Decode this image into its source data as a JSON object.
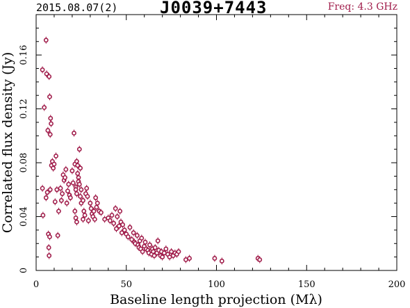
{
  "header": {
    "date": "2015.08.07(2)",
    "source": "J0039+7443",
    "freq": "Freq: 4.3 GHz"
  },
  "colors": {
    "marker": "#a01c4a",
    "axis": "#000000"
  },
  "chart_data": {
    "type": "scatter",
    "title": "J0039+7443",
    "xlabel": "Baseline length projection (Mλ)",
    "ylabel": "Correlated flux density (Jy)",
    "xlim": [
      0,
      200
    ],
    "ylim": [
      0,
      0.19
    ],
    "xticks": [
      "0",
      "50",
      "100",
      "150",
      "200"
    ],
    "yticks": [
      "0",
      "0.04",
      "0.08",
      "0.12",
      "0.16"
    ],
    "grid": false,
    "points": [
      [
        3.5,
        0.149
      ],
      [
        4.5,
        0.121
      ],
      [
        5.5,
        0.171
      ],
      [
        5.8,
        0.146
      ],
      [
        6.5,
        0.104
      ],
      [
        7.2,
        0.144
      ],
      [
        7.5,
        0.129
      ],
      [
        7.8,
        0.101
      ],
      [
        8,
        0.113
      ],
      [
        8.3,
        0.109
      ],
      [
        3.5,
        0.061
      ],
      [
        3.8,
        0.041
      ],
      [
        5.5,
        0.054
      ],
      [
        6.2,
        0.058
      ],
      [
        6.8,
        0.027
      ],
      [
        7,
        0.017
      ],
      [
        7.2,
        0.011
      ],
      [
        7.5,
        0.025
      ],
      [
        7.8,
        0.06
      ],
      [
        8.5,
        0.078
      ],
      [
        9,
        0.081
      ],
      [
        9.5,
        0.076
      ],
      [
        10,
        0.079
      ],
      [
        10.5,
        0.051
      ],
      [
        11,
        0.085
      ],
      [
        11.5,
        0.06
      ],
      [
        12,
        0.026
      ],
      [
        12.5,
        0.044
      ],
      [
        13.5,
        0.061
      ],
      [
        14,
        0.052
      ],
      [
        14.5,
        0.057
      ],
      [
        15,
        0.071
      ],
      [
        15.5,
        0.067
      ],
      [
        16,
        0.069
      ],
      [
        16.5,
        0.075
      ],
      [
        17,
        0.05
      ],
      [
        17.5,
        0.059
      ],
      [
        18,
        0.064
      ],
      [
        18.5,
        0.056
      ],
      [
        19,
        0.054
      ],
      [
        20,
        0.074
      ],
      [
        20.5,
        0.065
      ],
      [
        21,
        0.102
      ],
      [
        21.5,
        0.079
      ],
      [
        22,
        0.062
      ],
      [
        22.5,
        0.081
      ],
      [
        23,
        0.078
      ],
      [
        23.5,
        0.069
      ],
      [
        24,
        0.09
      ],
      [
        24.5,
        0.076
      ],
      [
        22,
        0.06
      ],
      [
        22.5,
        0.057
      ],
      [
        23,
        0.072
      ],
      [
        23.5,
        0.066
      ],
      [
        24,
        0.064
      ],
      [
        24.5,
        0.055
      ],
      [
        25,
        0.05
      ],
      [
        21.5,
        0.044
      ],
      [
        22,
        0.039
      ],
      [
        22.5,
        0.036
      ],
      [
        25,
        0.06
      ],
      [
        26,
        0.052
      ],
      [
        26.5,
        0.044
      ],
      [
        27,
        0.041
      ],
      [
        27.5,
        0.057
      ],
      [
        28,
        0.061
      ],
      [
        28.5,
        0.055
      ],
      [
        29,
        0.037
      ],
      [
        30,
        0.05
      ],
      [
        30.5,
        0.046
      ],
      [
        31,
        0.042
      ],
      [
        31.5,
        0.04
      ],
      [
        32,
        0.044
      ],
      [
        32.5,
        0.038
      ],
      [
        33,
        0.054
      ],
      [
        33.5,
        0.047
      ],
      [
        34,
        0.05
      ],
      [
        35,
        0.044
      ],
      [
        36,
        0.043
      ],
      [
        38,
        0.038
      ],
      [
        40,
        0.039
      ],
      [
        41,
        0.037
      ],
      [
        42,
        0.041
      ],
      [
        43,
        0.035
      ],
      [
        44,
        0.046
      ],
      [
        44.5,
        0.031
      ],
      [
        45,
        0.04
      ],
      [
        46,
        0.033
      ],
      [
        46.5,
        0.044
      ],
      [
        47,
        0.036
      ],
      [
        47.5,
        0.028
      ],
      [
        48,
        0.034
      ],
      [
        49,
        0.03
      ],
      [
        50,
        0.027
      ],
      [
        51,
        0.025
      ],
      [
        52,
        0.032
      ],
      [
        53,
        0.023
      ],
      [
        54,
        0.028
      ],
      [
        54.5,
        0.021
      ],
      [
        55,
        0.02
      ],
      [
        56,
        0.026
      ],
      [
        56.5,
        0.019
      ],
      [
        57,
        0.017
      ],
      [
        57.5,
        0.022
      ],
      [
        58,
        0.016
      ],
      [
        58.5,
        0.024
      ],
      [
        59,
        0.014
      ],
      [
        60,
        0.018
      ],
      [
        60.5,
        0.021
      ],
      [
        61,
        0.016
      ],
      [
        62,
        0.015
      ],
      [
        62.5,
        0.013
      ],
      [
        63,
        0.019
      ],
      [
        64,
        0.012
      ],
      [
        64.5,
        0.016
      ],
      [
        65,
        0.014
      ],
      [
        65.5,
        0.011
      ],
      [
        66,
        0.017
      ],
      [
        67,
        0.013
      ],
      [
        67.5,
        0.022
      ],
      [
        68,
        0.015
      ],
      [
        69,
        0.011
      ],
      [
        69.5,
        0.014
      ],
      [
        70,
        0.01
      ],
      [
        71,
        0.013
      ],
      [
        72,
        0.016
      ],
      [
        73,
        0.012
      ],
      [
        74,
        0.01
      ],
      [
        75,
        0.014
      ],
      [
        76,
        0.011
      ],
      [
        77,
        0.013
      ],
      [
        78,
        0.012
      ],
      [
        79,
        0.014
      ],
      [
        83,
        0.008
      ],
      [
        85,
        0.009
      ],
      [
        99,
        0.009
      ],
      [
        103,
        0.007
      ],
      [
        123,
        0.009
      ],
      [
        124,
        0.008
      ],
      [
        26,
        0.038
      ]
    ]
  }
}
